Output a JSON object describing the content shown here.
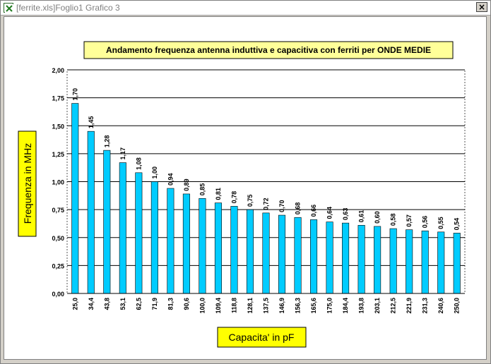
{
  "window": {
    "title": "[ferrite.xls]Foglio1 Grafico 3",
    "icon": "excel-sheet-icon",
    "close_label": "×",
    "close_icon": "close-icon"
  },
  "chart_data": {
    "type": "bar",
    "title": "Andamento frequenza antenna induttiva e capacitiva  con ferriti per ONDE MEDIE",
    "xlabel": "Capacita' in pF",
    "ylabel": "Frequenza in MHz",
    "categories": [
      "25,0",
      "34,4",
      "43,8",
      "53,1",
      "62,5",
      "71,9",
      "81,3",
      "90,6",
      "100,0",
      "109,4",
      "118,8",
      "128,1",
      "137,5",
      "146,9",
      "156,3",
      "165,6",
      "175,0",
      "184,4",
      "193,8",
      "203,1",
      "212,5",
      "221,9",
      "231,3",
      "240,6",
      "250,0"
    ],
    "values": [
      1.7,
      1.45,
      1.28,
      1.17,
      1.08,
      1.0,
      0.94,
      0.89,
      0.85,
      0.81,
      0.78,
      0.75,
      0.72,
      0.7,
      0.68,
      0.66,
      0.64,
      0.63,
      0.61,
      0.6,
      0.58,
      0.57,
      0.56,
      0.55,
      0.54
    ],
    "data_labels": [
      "1,70",
      "1,45",
      "1,28",
      "1,17",
      "1,08",
      "1,00",
      "0,94",
      "0,89",
      "0,85",
      "0,81",
      "0,78",
      "0,75",
      "0,72",
      "0,70",
      "0,68",
      "0,66",
      "0,64",
      "0,63",
      "0,61",
      "0,60",
      "0,58",
      "0,57",
      "0,56",
      "0,55",
      "0,54"
    ],
    "yticks": [
      0,
      0.25,
      0.5,
      0.75,
      1.0,
      1.25,
      1.5,
      1.75,
      2.0
    ],
    "ytick_labels": [
      "0,00",
      "0,25",
      "0,50",
      "0,75",
      "1,00",
      "1,25",
      "1,50",
      "1,75",
      "2,00"
    ],
    "ylim": [
      0,
      2.0
    ],
    "grid": true,
    "legend": "none",
    "colors": {
      "bar": "#00ccff",
      "bar_stroke": "#000000",
      "label_box": "#ffff99",
      "axis_label_box": "#ffff00"
    }
  }
}
